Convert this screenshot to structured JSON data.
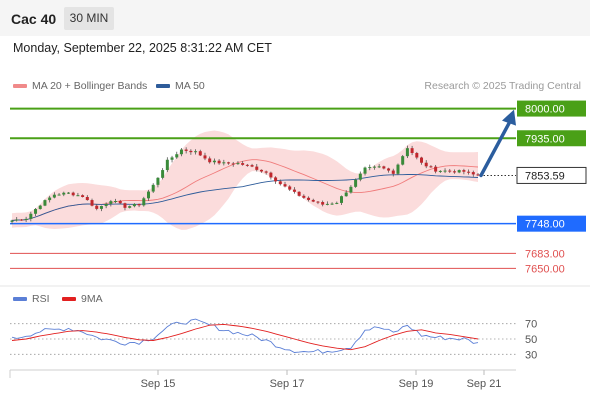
{
  "header": {
    "symbol": "Cac 40",
    "timeframe": "30 MIN"
  },
  "datetime": "Monday, September 22, 2025 8:31:22 AM CET",
  "legend": {
    "bollinger": "MA 20 + Bollinger Bands",
    "ma50": "MA 50",
    "credit": "Research © 2025 Trading Central",
    "rsi": "RSI",
    "rsi_ma": "9MA"
  },
  "colors": {
    "bull": "#3a8a3a",
    "bear": "#c0272d",
    "band_fill": "#fbdcdc",
    "ma20": "#f07c7c",
    "ma50": "#2e5c9a",
    "resistance": "#4aa017",
    "support": "#1f6bff",
    "lower_levels": "#e05050",
    "arrow": "#2b5d9e",
    "rsi": "#5b7fd6",
    "rsi_ma": "#e22020"
  },
  "chart_data": [
    {
      "type": "candlestick",
      "title": "Cac 40",
      "ylim": [
        7640,
        8010
      ],
      "x_labels": [
        "Sep 15",
        "Sep 17",
        "Sep 19",
        "Sep 21"
      ],
      "close_path": [
        7755,
        7760,
        7790,
        7812,
        7815,
        7808,
        7780,
        7800,
        7785,
        7790,
        7832,
        7885,
        7910,
        7905,
        7885,
        7880,
        7880,
        7872,
        7860,
        7835,
        7815,
        7800,
        7790,
        7795,
        7830,
        7868,
        7872,
        7860,
        7915,
        7880,
        7865,
        7863,
        7862,
        7852
      ],
      "levels": [
        {
          "label": "8000.00",
          "value": 8000.0,
          "kind": "resistance"
        },
        {
          "label": "7935.00",
          "value": 7935.0,
          "kind": "resistance"
        },
        {
          "label": "7853.59",
          "value": 7853.59,
          "kind": "current"
        },
        {
          "label": "7748.00",
          "value": 7748.0,
          "kind": "support"
        },
        {
          "label": "7683.00",
          "value": 7683.0,
          "kind": "level"
        },
        {
          "label": "7650.00",
          "value": 7650.0,
          "kind": "level"
        }
      ],
      "projection": {
        "from": 7853.59,
        "to": 8000.0
      }
    },
    {
      "type": "line",
      "title": "RSI",
      "ylim": [
        20,
        80
      ],
      "y_ticks": [
        "70",
        "50",
        "30"
      ],
      "series": [
        {
          "name": "RSI",
          "values": [
            50,
            55,
            60,
            62,
            64,
            60,
            52,
            48,
            45,
            46,
            52,
            65,
            72,
            73,
            68,
            62,
            58,
            54,
            48,
            40,
            35,
            33,
            34,
            36,
            40,
            62,
            65,
            58,
            68,
            55,
            52,
            51,
            50,
            44
          ]
        },
        {
          "name": "9MA",
          "values": [
            48,
            50,
            54,
            57,
            60,
            61,
            59,
            56,
            52,
            49,
            48,
            52,
            57,
            63,
            68,
            69,
            67,
            64,
            60,
            55,
            50,
            45,
            41,
            38,
            36,
            40,
            48,
            55,
            60,
            62,
            58,
            56,
            53,
            50
          ]
        }
      ]
    }
  ]
}
